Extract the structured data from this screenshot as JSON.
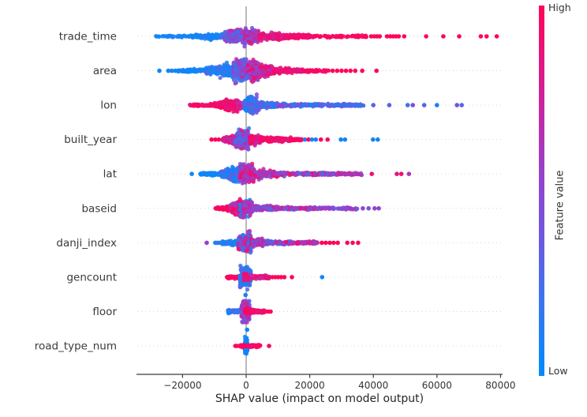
{
  "chart_data": {
    "type": "scatter",
    "subtype": "shap-beeswarm-summary",
    "xlabel": "SHAP value (impact on model output)",
    "x_ticks": [
      -20000,
      0,
      20000,
      40000,
      60000,
      80000
    ],
    "x_tick_labels": [
      "−20000",
      "0",
      "20000",
      "40000",
      "60000",
      "80000"
    ],
    "xlim": [
      -34500,
      80600
    ],
    "grid": "dotted horizontal row lines",
    "zero_line": true,
    "colorbar": {
      "label": "Feature value",
      "high": "High",
      "low": "Low",
      "stops": [
        [
          0,
          "#008bfb"
        ],
        [
          0.2,
          "#3a75ee"
        ],
        [
          0.4,
          "#7454dd"
        ],
        [
          0.55,
          "#9840cb"
        ],
        [
          0.7,
          "#c128a8"
        ],
        [
          0.85,
          "#e41580"
        ],
        [
          1,
          "#ff0458"
        ]
      ]
    },
    "colors": {
      "low": "#008bfb",
      "high": "#ff0458",
      "zero_line": "#9c9c9c",
      "axis": "#3c3c3c",
      "tick_text": "#333333",
      "gridline": "#d6d6d6"
    },
    "segment_format": "[shap_start, shap_end, n_points, thickness_px_start, thickness_px_end, feature_value_t_min, feature_value_t_max]",
    "outlier_format": "[shap_value, feature_value_t, optional_dy_px]",
    "features": [
      {
        "name": "trade_time",
        "segments": [
          [
            -29000,
            -17000,
            40,
            1.5,
            2.5,
            0,
            0.12
          ],
          [
            -17000,
            -7000,
            110,
            2.5,
            8,
            0,
            0.18
          ],
          [
            -7000,
            -500,
            230,
            9,
            17,
            0.12,
            0.8
          ],
          [
            -500,
            4000,
            160,
            16,
            10,
            0.3,
            0.95
          ],
          [
            4000,
            12000,
            150,
            8,
            7,
            0.72,
            1
          ],
          [
            12000,
            20000,
            100,
            5,
            3.5,
            0.85,
            1
          ],
          [
            20000,
            38000,
            80,
            2.5,
            2,
            0.9,
            1
          ]
        ],
        "outliers": [
          [
            39300,
            1
          ],
          [
            40300,
            1
          ],
          [
            41200,
            1
          ],
          [
            42000,
            1
          ],
          [
            44300,
            1
          ],
          [
            45300,
            1
          ],
          [
            46200,
            1
          ],
          [
            47100,
            1
          ],
          [
            48000,
            1
          ],
          [
            49700,
            1
          ],
          [
            56600,
            1
          ],
          [
            62000,
            1
          ],
          [
            67000,
            1
          ],
          [
            73800,
            1
          ],
          [
            75600,
            1
          ],
          [
            78800,
            1
          ]
        ]
      },
      {
        "name": "area",
        "segments": [
          [
            -21500,
            -13000,
            80,
            1.5,
            4,
            0,
            0.12
          ],
          [
            -13000,
            -4000,
            200,
            5,
            15,
            0,
            0.3
          ],
          [
            -4000,
            500,
            260,
            18,
            22,
            0.1,
            0.75
          ],
          [
            500,
            4000,
            220,
            21,
            16,
            0.35,
            0.95
          ],
          [
            4000,
            9000,
            170,
            14,
            8,
            0.55,
            1
          ],
          [
            9000,
            18000,
            130,
            6,
            3,
            0.8,
            1
          ],
          [
            18000,
            26000,
            50,
            2.5,
            2,
            0.9,
            1
          ]
        ],
        "outliers": [
          [
            -27300,
            0.05
          ],
          [
            -24500,
            0.05
          ],
          [
            -23400,
            0.08
          ],
          [
            -22300,
            0.05
          ],
          [
            27200,
            1
          ],
          [
            28600,
            1
          ],
          [
            30000,
            1
          ],
          [
            31400,
            1
          ],
          [
            32800,
            1
          ],
          [
            34300,
            1
          ],
          [
            36500,
            1
          ],
          [
            41000,
            1
          ]
        ]
      },
      {
        "name": "lon",
        "segments": [
          [
            -17900,
            -10000,
            70,
            1.5,
            3,
            0.85,
            1
          ],
          [
            -10000,
            -6500,
            110,
            4,
            9,
            0.85,
            1
          ],
          [
            -6500,
            -2500,
            150,
            11,
            11,
            0.78,
            1
          ],
          [
            -2500,
            -500,
            70,
            8,
            6,
            0.45,
            0.9
          ],
          [
            -500,
            3500,
            200,
            14,
            17,
            0,
            0.45
          ],
          [
            3500,
            10000,
            140,
            8,
            4,
            0,
            0.5
          ],
          [
            10000,
            24000,
            140,
            3,
            2.5,
            0,
            0.6
          ],
          [
            24000,
            37000,
            90,
            2.5,
            2,
            0.05,
            0.55
          ]
        ],
        "outliers": [
          [
            40000,
            0.3
          ],
          [
            45000,
            0.32
          ],
          [
            50800,
            0.2
          ],
          [
            52400,
            0.45
          ],
          [
            56000,
            0.28
          ],
          [
            60000,
            0.12
          ],
          [
            66300,
            0.4
          ],
          [
            67800,
            0.3
          ]
        ]
      },
      {
        "name": "built_year",
        "segments": [
          [
            -7500,
            -3500,
            100,
            3,
            10,
            0.6,
            1
          ],
          [
            -3500,
            1000,
            230,
            16,
            18,
            0.05,
            0.9
          ],
          [
            1000,
            5000,
            150,
            12,
            6,
            0.7,
            1
          ],
          [
            5000,
            14000,
            130,
            4.5,
            4,
            0.85,
            1
          ],
          [
            14000,
            17500,
            50,
            3,
            2,
            0.9,
            1
          ]
        ],
        "outliers": [
          [
            -10900,
            1
          ],
          [
            -9700,
            0.95
          ],
          [
            -8600,
            1
          ],
          [
            18500,
            0.1
          ],
          [
            19600,
            1
          ],
          [
            20700,
            0.12
          ],
          [
            21900,
            0.08
          ],
          [
            23500,
            1
          ],
          [
            25600,
            1
          ],
          [
            29800,
            0.05
          ],
          [
            31100,
            0.08
          ],
          [
            39900,
            0.05
          ],
          [
            41400,
            0.08
          ]
        ]
      },
      {
        "name": "lat",
        "segments": [
          [
            -14500,
            -8000,
            80,
            1.5,
            4,
            0,
            0.12
          ],
          [
            -8000,
            -2000,
            220,
            6,
            20,
            0,
            0.4
          ],
          [
            -2000,
            2500,
            240,
            20,
            16,
            0.4,
            1
          ],
          [
            2500,
            12000,
            190,
            9,
            4.5,
            0.3,
            1
          ],
          [
            12000,
            30000,
            170,
            3,
            2.5,
            0.2,
            1
          ],
          [
            30000,
            36500,
            50,
            2,
            2,
            0.4,
            0.9
          ]
        ],
        "outliers": [
          [
            -17100,
            0.05
          ],
          [
            39500,
            0.9
          ],
          [
            47400,
            0.85
          ],
          [
            48800,
            0.9
          ],
          [
            51200,
            0.6
          ]
        ]
      },
      {
        "name": "baseid",
        "segments": [
          [
            -9700,
            -5000,
            90,
            2,
            4.5,
            0.9,
            1
          ],
          [
            -5000,
            -1000,
            200,
            8,
            20,
            0.55,
            1
          ],
          [
            -2000,
            1500,
            40,
            20,
            20,
            0,
            0.2
          ],
          [
            -1000,
            2000,
            130,
            18,
            12,
            0.4,
            0.9
          ],
          [
            2000,
            10000,
            130,
            7,
            3.5,
            0.3,
            0.8
          ],
          [
            10000,
            22000,
            120,
            3,
            2.5,
            0.3,
            0.9
          ],
          [
            22000,
            35000,
            70,
            2,
            2,
            0.35,
            0.7
          ]
        ],
        "outliers": [
          [
            36700,
            0.5
          ],
          [
            38500,
            0.45
          ],
          [
            40400,
            0.5
          ],
          [
            41700,
            0.55
          ]
        ]
      },
      {
        "name": "danji_index",
        "segments": [
          [
            -7500,
            -2500,
            110,
            2.5,
            6,
            0,
            0.25
          ],
          [
            -2500,
            1500,
            230,
            14,
            20,
            0,
            0.95
          ],
          [
            1500,
            6000,
            130,
            10,
            5,
            0.2,
            1
          ],
          [
            6000,
            14000,
            110,
            3.5,
            3,
            0,
            1
          ],
          [
            14000,
            22500,
            80,
            2.5,
            2.5,
            0.4,
            1
          ]
        ],
        "outliers": [
          [
            -12400,
            0.55
          ],
          [
            -9700,
            0.1
          ],
          [
            -9000,
            0.12
          ],
          [
            -8300,
            0.15
          ],
          [
            23800,
            1
          ],
          [
            25000,
            1
          ],
          [
            26300,
            1
          ],
          [
            27500,
            0.95
          ],
          [
            28800,
            1
          ],
          [
            31800,
            1
          ],
          [
            33500,
            0.95
          ],
          [
            35200,
            1
          ]
        ]
      },
      {
        "name": "gencount",
        "segments": [
          [
            -5800,
            -2000,
            80,
            2.5,
            3,
            0.85,
            1
          ],
          [
            -2000,
            1500,
            180,
            22,
            22,
            0,
            0.35
          ],
          [
            -800,
            800,
            50,
            8,
            8,
            0.7,
            1
          ],
          [
            1500,
            7500,
            100,
            4,
            3,
            0.6,
            1
          ]
        ],
        "outliers": [
          [
            -6000,
            1
          ],
          [
            8300,
            1
          ],
          [
            9200,
            1
          ],
          [
            10100,
            1
          ],
          [
            11000,
            1
          ],
          [
            12000,
            1
          ],
          [
            14400,
            1
          ],
          [
            23900,
            0.05
          ]
        ]
      },
      {
        "name": "floor",
        "segments": [
          [
            -5800,
            -1500,
            90,
            3,
            4,
            0,
            0.3
          ],
          [
            -1500,
            1200,
            160,
            20,
            20,
            0.3,
            0.8
          ],
          [
            -500,
            900,
            30,
            10,
            10,
            0.9,
            1
          ],
          [
            1200,
            6200,
            90,
            3.5,
            3,
            0.85,
            1
          ]
        ],
        "outliers": [
          [
            6900,
            1
          ],
          [
            7700,
            1
          ],
          [
            300,
            0.05,
            23
          ],
          [
            -200,
            0.05,
            -21
          ]
        ]
      },
      {
        "name": "road_type_num",
        "segments": [
          [
            -400,
            400,
            140,
            16,
            16,
            0,
            0.1
          ],
          [
            -2300,
            4500,
            80,
            2.5,
            2.5,
            0.9,
            1
          ]
        ],
        "outliers": [
          [
            -3400,
            1
          ],
          [
            -2900,
            1
          ],
          [
            7200,
            1
          ]
        ]
      }
    ]
  }
}
